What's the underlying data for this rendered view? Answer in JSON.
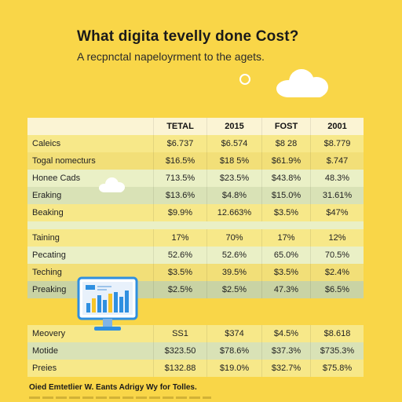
{
  "header": {
    "title": "What digita tevelly done Cost?",
    "subtitle": "A recpnctal napeloyrment to the agets."
  },
  "table": {
    "columns": [
      "",
      "TETAL",
      "2015",
      "FOST",
      "2001"
    ],
    "rows": [
      {
        "label": "Caleics",
        "values": [
          "$6.737",
          "$6.574",
          "$8 28",
          "$8.779"
        ]
      },
      {
        "label": "Togal nomecturs",
        "values": [
          "$16.5%",
          "$18 5%",
          "$61.9%",
          "$.747"
        ]
      },
      {
        "label": "Honee Cads",
        "values": [
          "713.5%",
          "$23.5%",
          "$43.8%",
          "48.3%"
        ]
      },
      {
        "label": "Eraking",
        "values": [
          "$13.6%",
          "$4.8%",
          "$15.0%",
          "31.61%"
        ]
      },
      {
        "label": "Beaking",
        "values": [
          "$9.9%",
          "12.663%",
          "$3.5%",
          "$47%"
        ]
      },
      {
        "label": "",
        "values": [
          "",
          "",
          "",
          ""
        ]
      },
      {
        "label": "Taining",
        "values": [
          "17%",
          "70%",
          "17%",
          "12%"
        ]
      },
      {
        "label": "Pecating",
        "values": [
          "52.6%",
          "52.6%",
          "65.0%",
          "70.5%"
        ]
      },
      {
        "label": "Teching",
        "values": [
          "$3.5%",
          "39.5%",
          "$3.5%",
          "$2.4%"
        ]
      },
      {
        "label": "Preaking",
        "values": [
          "$2.5%",
          "$2.5%",
          "47.3%",
          "$6.5%"
        ]
      },
      {
        "label": "",
        "values": [
          "",
          "",
          "",
          ""
        ]
      },
      {
        "label": "Meovery",
        "values": [
          "SS1",
          "$374",
          "$4.5%",
          "$8.618"
        ]
      },
      {
        "label": "Motide",
        "values": [
          "$323.50",
          "$78.6%",
          "$37.3%",
          "$735.3%"
        ]
      },
      {
        "label": "Preies",
        "values": [
          "$132.88",
          "$19.0%",
          "$32.7%",
          "$75.8%"
        ]
      }
    ]
  },
  "footer": {
    "text": "Oied Emtetlier W. Eants Adrigy Wy for Tolles."
  },
  "colors": {
    "background": "#f9d648",
    "monitor_screen": "#e8f1fb",
    "bar_blue": "#2f8fe0",
    "bar_yellow": "#f7c52a"
  }
}
